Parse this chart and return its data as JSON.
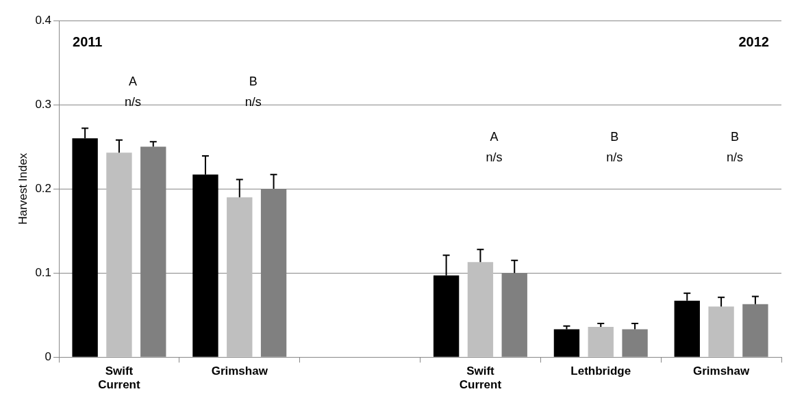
{
  "chart_data": {
    "type": "bar",
    "ylabel": "Harvest Index",
    "categories": [
      "Swift Current",
      "Grimshaw",
      null,
      "Swift Current",
      "Lethbridge",
      "Grimshaw"
    ],
    "series": [
      {
        "color": "#000000",
        "values": [
          0.26,
          0.217,
          null,
          0.097,
          0.033,
          0.067
        ],
        "errors": [
          [
            0.26,
            0.272
          ],
          [
            0.217,
            0.239
          ],
          null,
          [
            0.097,
            0.121
          ],
          [
            0.033,
            0.037
          ],
          [
            0.067,
            0.076
          ]
        ]
      },
      {
        "color": "#bfbfbf",
        "values": [
          0.243,
          0.19,
          null,
          0.113,
          0.036,
          0.06
        ],
        "errors": [
          [
            0.243,
            0.258
          ],
          [
            0.19,
            0.211
          ],
          null,
          [
            0.113,
            0.128
          ],
          [
            0.036,
            0.04
          ],
          [
            0.06,
            0.071
          ]
        ]
      },
      {
        "color": "#808080",
        "values": [
          0.25,
          0.2,
          null,
          0.1,
          0.033,
          0.063
        ],
        "errors": [
          [
            0.25,
            0.256
          ],
          [
            0.2,
            0.217
          ],
          null,
          [
            0.1,
            0.115
          ],
          [
            0.033,
            0.04
          ],
          [
            0.063,
            0.072
          ]
        ]
      }
    ],
    "ylim": [
      0,
      0.4
    ],
    "yticks": [
      0,
      0.1,
      0.2,
      0.3,
      0.4
    ],
    "grid": "y",
    "legend": false,
    "annotations": [
      "2011",
      "2012",
      "A",
      "n/s",
      "B",
      "n/s",
      "A",
      "n/s",
      "B",
      "n/s",
      "B",
      "n/s"
    ]
  }
}
